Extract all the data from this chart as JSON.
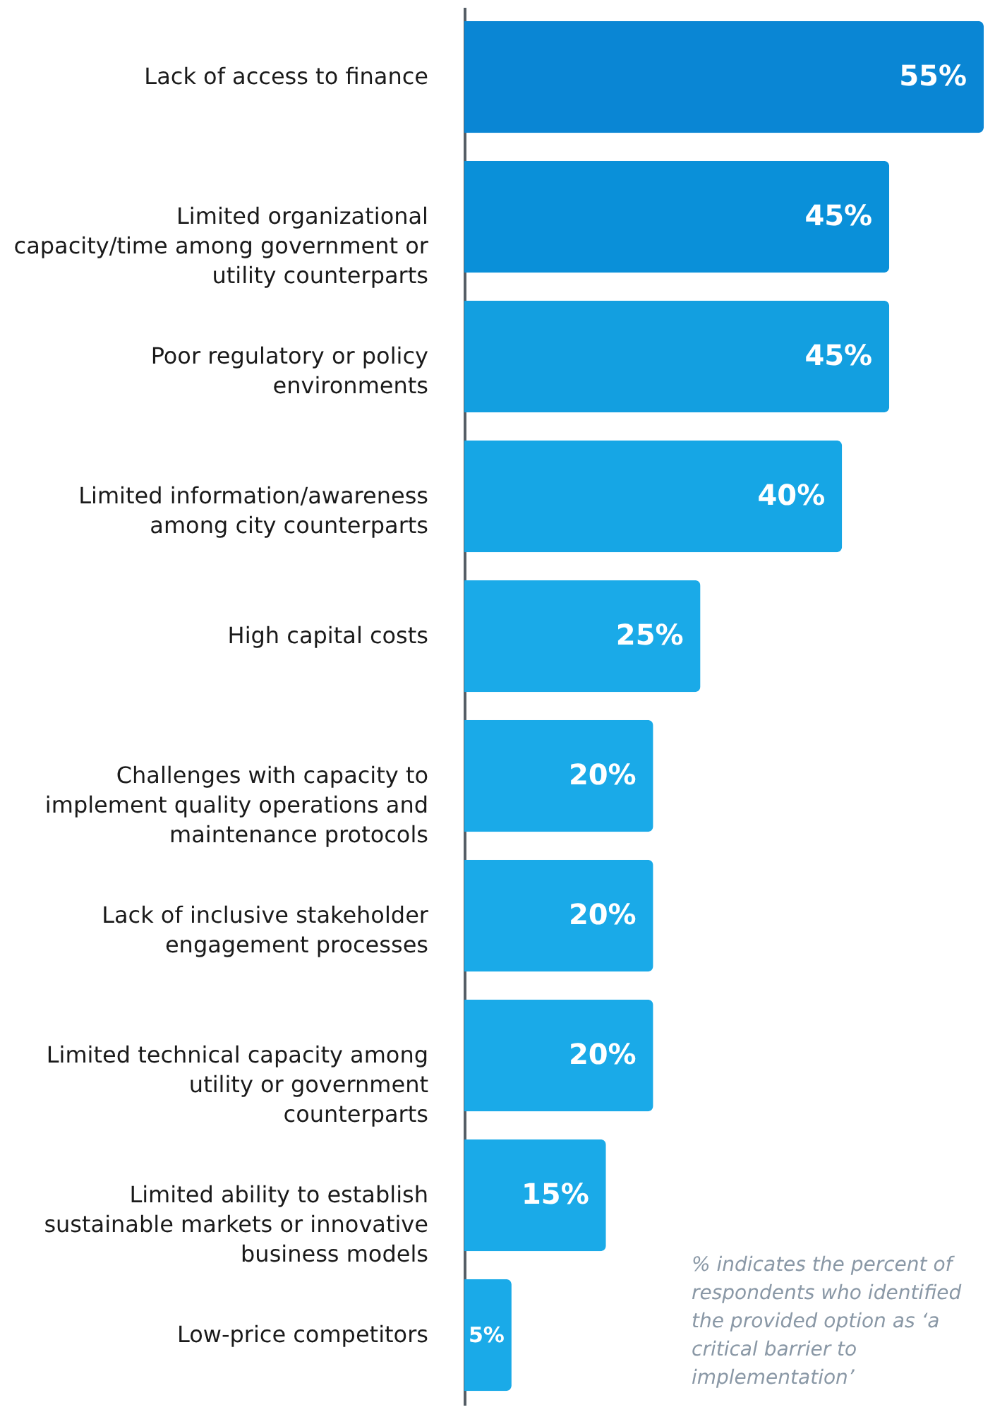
{
  "chart_data": {
    "type": "bar",
    "orientation": "horizontal",
    "categories": [
      "Lack of access to finance",
      "Limited organizational capacity/time among government or utility counterparts",
      "Poor regulatory or policy environments",
      "Limited information/awareness among city counterparts",
      "High capital costs",
      "Challenges with capacity to implement quality operations and maintenance protocols",
      "Lack of inclusive stakeholder engagement processes",
      "Limited technical capacity among utility or government counterparts",
      "Limited ability to establish sustainable markets or innovative business models",
      "Low-price competitors"
    ],
    "values": [
      55,
      45,
      45,
      40,
      25,
      20,
      20,
      20,
      15,
      5
    ],
    "colors": [
      "#0a86d4",
      "#0a90d9",
      "#139fe0",
      "#16a6e5",
      "#1aaae8",
      "#1aaae8",
      "#1aaae8",
      "#1aaae8",
      "#1aaae8",
      "#1aaae8"
    ],
    "value_labels": [
      "55%",
      "45%",
      "45%",
      "40%",
      "25%",
      "20%",
      "20%",
      "20%",
      "15%",
      "5%"
    ],
    "annotations": [
      "% indicates the percent of respondents who identified the provided option as ‘a critical barrier to implementation’"
    ]
  }
}
